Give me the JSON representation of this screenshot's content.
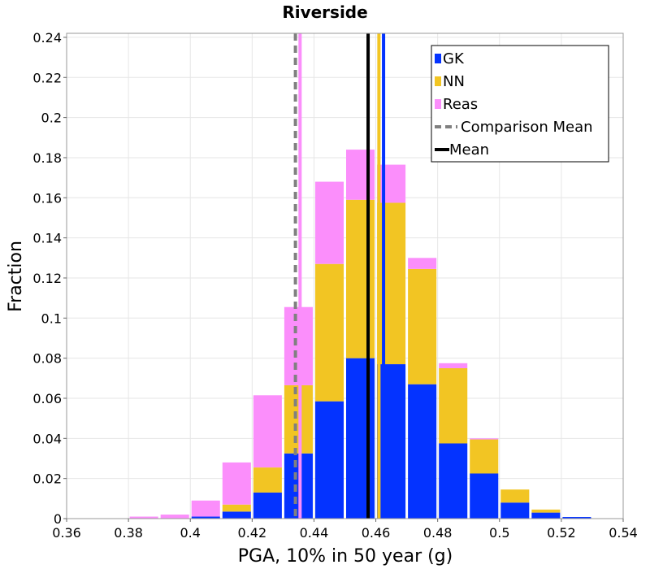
{
  "chart_data": {
    "type": "bar",
    "stacked": true,
    "title": "Riverside",
    "xlabel": "PGA, 10% in 50 year (g)",
    "ylabel": "Fraction",
    "xlim": [
      0.36,
      0.54
    ],
    "ylim": [
      0,
      0.242
    ],
    "x_ticks": [
      "0.36",
      "0.38",
      "0.4",
      "0.42",
      "0.44",
      "0.46",
      "0.48",
      "0.5",
      "0.52",
      "0.54"
    ],
    "y_ticks": [
      "0",
      "0.02",
      "0.04",
      "0.06",
      "0.08",
      "0.1",
      "0.12",
      "0.14",
      "0.16",
      "0.18",
      "0.2",
      "0.22",
      "0.24"
    ],
    "bin_width": 0.01,
    "bin_starts": [
      0.36,
      0.37,
      0.38,
      0.39,
      0.4,
      0.41,
      0.42,
      0.43,
      0.44,
      0.45,
      0.46,
      0.47,
      0.48,
      0.49,
      0.5,
      0.51,
      0.52,
      0.53
    ],
    "series": [
      {
        "name": "GK",
        "color": "#0433ff",
        "values": [
          0,
          0,
          0,
          0,
          0.001,
          0.0035,
          0.013,
          0.0325,
          0.0585,
          0.08,
          0.077,
          0.067,
          0.0375,
          0.0225,
          0.008,
          0.003,
          0.0008,
          0.0001
        ]
      },
      {
        "name": "NN",
        "color": "#f2c523",
        "values": [
          0,
          0,
          0,
          0,
          0,
          0.0035,
          0.0125,
          0.034,
          0.0685,
          0.079,
          0.0805,
          0.0575,
          0.0375,
          0.017,
          0.0065,
          0.0015,
          0,
          0
        ]
      },
      {
        "name": "Reas",
        "color": "#fb8efb",
        "values": [
          0,
          0,
          0.001,
          0.002,
          0.008,
          0.021,
          0.036,
          0.039,
          0.041,
          0.025,
          0.019,
          0.0055,
          0.0025,
          0.0005,
          0,
          0,
          0,
          0
        ]
      }
    ],
    "vertical_lines": [
      {
        "name": "GK mean",
        "x": 0.4625,
        "color": "#0433ff"
      },
      {
        "name": "NN mean",
        "x": 0.461,
        "color": "#f2c523"
      },
      {
        "name": "Reas mean",
        "x": 0.4355,
        "color": "#fb8efb"
      },
      {
        "name": "Comparison Mean",
        "x": 0.434,
        "color": "#808080",
        "style": "dashed"
      },
      {
        "name": "Mean",
        "x": 0.4575,
        "color": "#000000"
      }
    ],
    "legend": {
      "position": "top-right",
      "entries": [
        {
          "label": "GK",
          "kind": "swatch",
          "color": "#0433ff"
        },
        {
          "label": "NN",
          "kind": "swatch",
          "color": "#f2c523"
        },
        {
          "label": "Reas",
          "kind": "swatch",
          "color": "#fb8efb"
        },
        {
          "label": "Comparison Mean",
          "kind": "dashed-line",
          "color": "#808080"
        },
        {
          "label": "Mean",
          "kind": "line",
          "color": "#000000"
        }
      ]
    },
    "grid": true
  }
}
